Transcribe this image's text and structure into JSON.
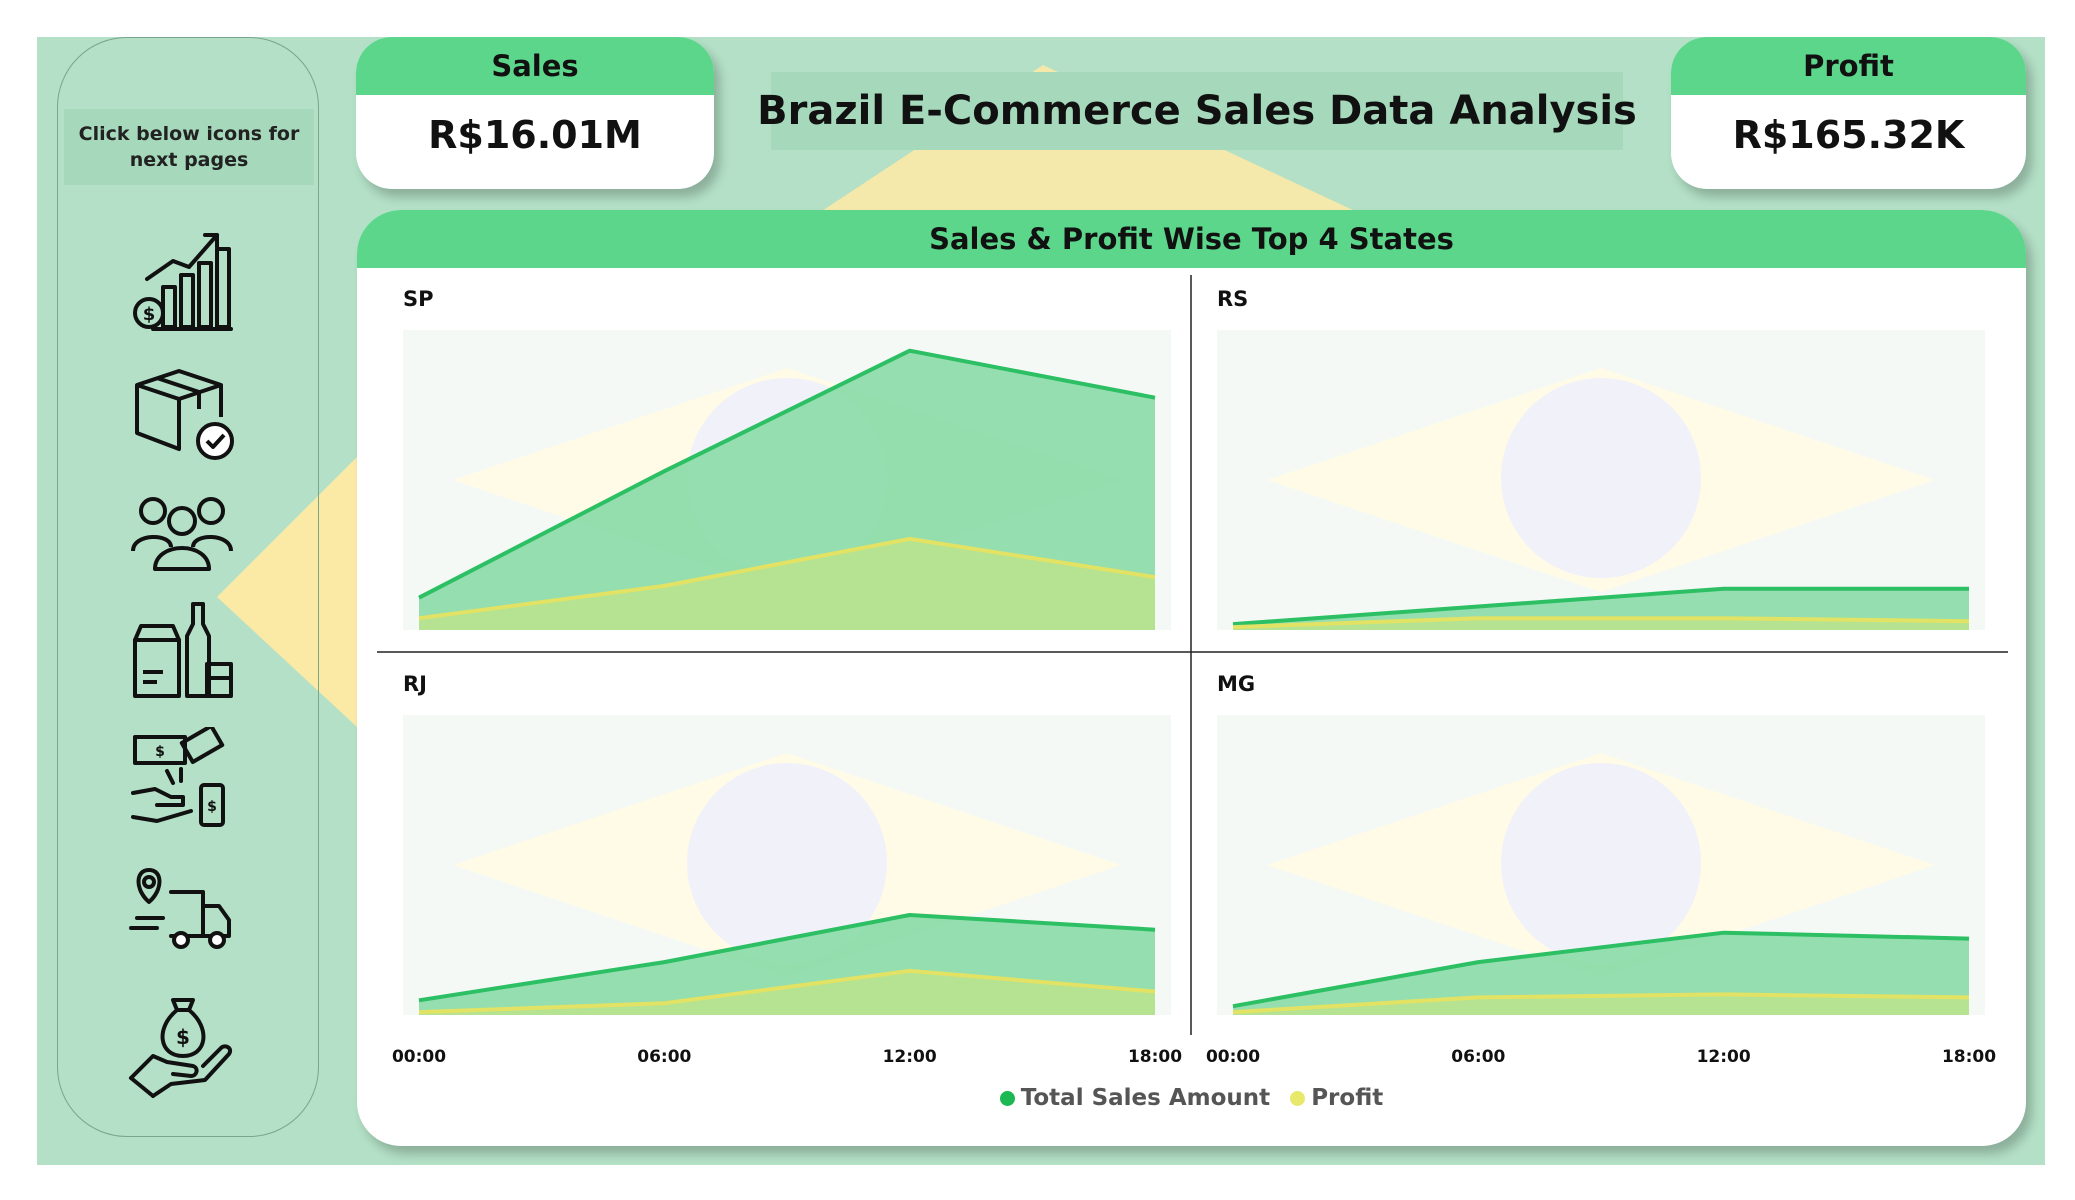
{
  "header": {
    "title": "Brazil E-Commerce Sales Data Analysis"
  },
  "sidebar": {
    "hint": "Click below icons for next pages",
    "icons": [
      "sales-growth-icon",
      "product-box-icon",
      "customers-icon",
      "product-category-icon",
      "payment-icon",
      "delivery-icon",
      "money-hand-icon"
    ]
  },
  "kpis": {
    "sales": {
      "label": "Sales",
      "value": "R$16.01M"
    },
    "profit": {
      "label": "Profit",
      "value": "R$165.32K"
    }
  },
  "panel": {
    "title": "Sales & Profit Wise Top 4 States"
  },
  "colors": {
    "accent": "#5cd68a",
    "background": "#b3e0c6",
    "sales_line": "#2cbf63",
    "sales_fill": "#8edcab",
    "profit_line": "#e2e264",
    "profit_fill": "#b9e38e",
    "legend_sales": "#1cb853",
    "legend_profit": "#e8e86a"
  },
  "chart_data": {
    "type": "area",
    "layout": "small-multiples",
    "x": [
      "00:00",
      "06:00",
      "12:00",
      "18:00"
    ],
    "ylim": [
      0,
      1
    ],
    "legend": {
      "position": "bottom-center",
      "entries": [
        "Total Sales Amount",
        "Profit"
      ]
    },
    "grid": false,
    "panels": [
      {
        "name": "SP",
        "series": [
          {
            "name": "Total Sales Amount",
            "values": [
              0.11,
              0.54,
              0.95,
              0.79
            ]
          },
          {
            "name": "Profit",
            "values": [
              0.04,
              0.15,
              0.31,
              0.18
            ]
          }
        ]
      },
      {
        "name": "RS",
        "series": [
          {
            "name": "Total Sales Amount",
            "values": [
              0.02,
              0.08,
              0.14,
              0.14
            ]
          },
          {
            "name": "Profit",
            "values": [
              0.01,
              0.04,
              0.04,
              0.03
            ]
          }
        ]
      },
      {
        "name": "RJ",
        "series": [
          {
            "name": "Total Sales Amount",
            "values": [
              0.05,
              0.18,
              0.34,
              0.29
            ]
          },
          {
            "name": "Profit",
            "values": [
              0.01,
              0.04,
              0.15,
              0.08
            ]
          }
        ]
      },
      {
        "name": "MG",
        "series": [
          {
            "name": "Total Sales Amount",
            "values": [
              0.03,
              0.18,
              0.28,
              0.26
            ]
          },
          {
            "name": "Profit",
            "values": [
              0.01,
              0.06,
              0.07,
              0.06
            ]
          }
        ]
      }
    ]
  }
}
